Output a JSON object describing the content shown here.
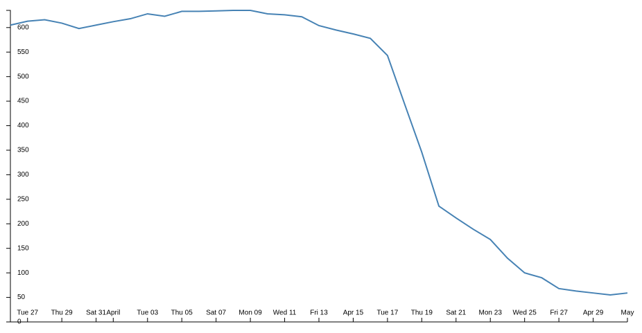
{
  "chart_data": {
    "type": "line",
    "categories": [
      null,
      "Tue 27",
      null,
      "Thu 29",
      null,
      "Sat 31",
      "April",
      null,
      "Tue 03",
      null,
      "Thu 05",
      null,
      "Sat 07",
      null,
      "Mon 09",
      null,
      "Wed 11",
      null,
      "Fri 13",
      null,
      "Apr 15",
      null,
      "Tue 17",
      null,
      "Thu 19",
      null,
      "Sat 21",
      null,
      "Mon 23",
      null,
      "Wed 25",
      null,
      "Fri 27",
      null,
      "Apr 29",
      null,
      "May"
    ],
    "series": [
      {
        "color": "#4682b4",
        "values": [
          605,
          613,
          616,
          609,
          598,
          605,
          612,
          618,
          628,
          623,
          633,
          633,
          634,
          635,
          635,
          628,
          626,
          622,
          604,
          595,
          587,
          578,
          543,
          444,
          346,
          236,
          212,
          189,
          168,
          130,
          100,
          90,
          68,
          63,
          59,
          55,
          59
        ]
      }
    ],
    "ylim": [
      0,
      635
    ],
    "yticks": [
      0,
      50,
      100,
      150,
      200,
      250,
      300,
      350,
      400,
      450,
      500,
      550,
      600
    ]
  }
}
